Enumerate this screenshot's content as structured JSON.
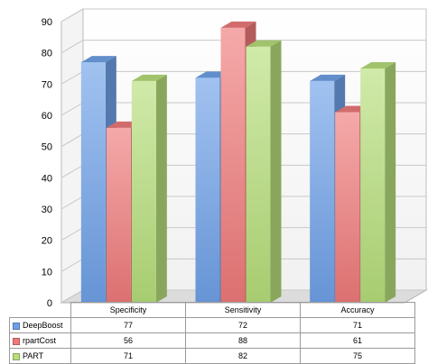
{
  "chart_data": {
    "type": "bar",
    "title": "",
    "xlabel": "",
    "ylabel": "",
    "categories": [
      "Specificity",
      "Sensitivity",
      "Accuracy"
    ],
    "series": [
      {
        "name": "DeepBoost",
        "values": [
          77,
          72,
          71
        ],
        "color": "#6fa1e8"
      },
      {
        "name": "rpartCost",
        "values": [
          56,
          88,
          61
        ],
        "color": "#ef7a7a"
      },
      {
        "name": "PART",
        "values": [
          71,
          82,
          75
        ],
        "color": "#b6de7a"
      }
    ],
    "ylim": [
      0,
      90
    ],
    "yticks": [
      0,
      10,
      20,
      30,
      40,
      50,
      60,
      70,
      80,
      90
    ],
    "grid": true,
    "legend": "data-table-left",
    "style": "3d-clustered-column"
  }
}
